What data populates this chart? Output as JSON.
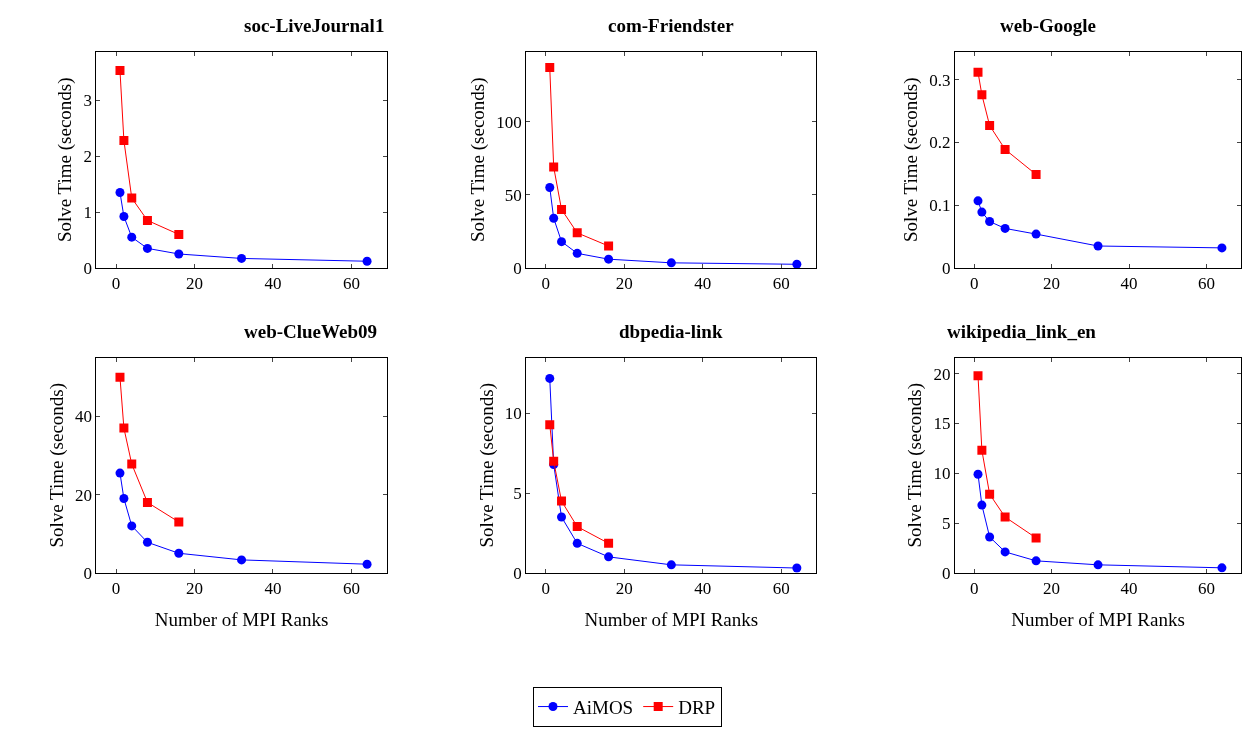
{
  "chart_data": [
    {
      "type": "line",
      "title": "soc-LiveJournal1",
      "ylabel": "Solve Time (seconds)",
      "xlim": [
        -5,
        69
      ],
      "xticks": [
        0,
        20,
        40,
        60
      ],
      "ylim": [
        0,
        3.87
      ],
      "yticks": [
        0,
        1,
        2,
        3
      ],
      "legend": "bottom",
      "series": [
        {
          "name": "AiMOS",
          "color": "#0000ff",
          "marker": "circle",
          "x": [
            1,
            2,
            4,
            8,
            16,
            32,
            64
          ],
          "values": [
            1.35,
            0.92,
            0.55,
            0.35,
            0.25,
            0.17,
            0.12
          ]
        },
        {
          "name": "DRP",
          "color": "#ff0000",
          "marker": "square",
          "x": [
            1,
            2,
            4,
            8,
            16
          ],
          "values": [
            3.53,
            2.28,
            1.25,
            0.85,
            0.6
          ]
        }
      ]
    },
    {
      "type": "line",
      "title": "com-Friendster",
      "ylabel": "Solve Time (seconds)",
      "xlim": [
        -5,
        69
      ],
      "xticks": [
        0,
        20,
        40,
        60
      ],
      "ylim": [
        0,
        148
      ],
      "yticks": [
        0,
        50,
        100
      ],
      "legend": "bottom",
      "series": [
        {
          "name": "AiMOS",
          "color": "#0000ff",
          "marker": "circle",
          "x": [
            1,
            2,
            4,
            8,
            16,
            32,
            64
          ],
          "values": [
            55,
            34,
            18,
            10,
            6,
            3.5,
            2.5
          ]
        },
        {
          "name": "DRP",
          "color": "#ff0000",
          "marker": "square",
          "x": [
            1,
            2,
            4,
            8,
            16
          ],
          "values": [
            137,
            69,
            40,
            24,
            15
          ]
        }
      ]
    },
    {
      "type": "line",
      "title": "web-Google",
      "ylabel": "Solve Time (seconds)",
      "xlim": [
        -5,
        69
      ],
      "xticks": [
        0,
        20,
        40,
        60
      ],
      "ylim": [
        0,
        0.345
      ],
      "yticks": [
        0,
        0.1,
        0.2,
        0.3
      ],
      "legend": "bottom",
      "series": [
        {
          "name": "AiMOS",
          "color": "#0000ff",
          "marker": "circle",
          "x": [
            1,
            2,
            4,
            8,
            16,
            32,
            64
          ],
          "values": [
            0.107,
            0.089,
            0.074,
            0.063,
            0.054,
            0.035,
            0.032
          ]
        },
        {
          "name": "DRP",
          "color": "#ff0000",
          "marker": "square",
          "x": [
            1,
            2,
            4,
            8,
            16
          ],
          "values": [
            0.312,
            0.276,
            0.227,
            0.189,
            0.149
          ]
        }
      ]
    },
    {
      "type": "line",
      "title": "web-ClueWeb09",
      "xlabel": "Number of MPI Ranks",
      "ylabel": "Solve Time (seconds)",
      "xlim": [
        -5,
        69
      ],
      "xticks": [
        0,
        20,
        40,
        60
      ],
      "ylim": [
        0,
        55
      ],
      "yticks": [
        0,
        20,
        40
      ],
      "legend": "bottom",
      "series": [
        {
          "name": "AiMOS",
          "color": "#0000ff",
          "marker": "circle",
          "x": [
            1,
            2,
            4,
            8,
            16,
            32,
            64
          ],
          "values": [
            25.5,
            19,
            12,
            7.8,
            5,
            3.3,
            2.2
          ]
        },
        {
          "name": "DRP",
          "color": "#ff0000",
          "marker": "square",
          "x": [
            1,
            2,
            4,
            8,
            16
          ],
          "values": [
            50,
            37,
            27.8,
            18,
            13
          ]
        }
      ]
    },
    {
      "type": "line",
      "title": "dbpedia-link",
      "xlabel": "Number of MPI Ranks",
      "ylabel": "Solve Time (seconds)",
      "xlim": [
        -5,
        69
      ],
      "xticks": [
        0,
        20,
        40,
        60
      ],
      "ylim": [
        0,
        13.5
      ],
      "yticks": [
        0,
        5,
        10
      ],
      "legend": "bottom",
      "series": [
        {
          "name": "AiMOS",
          "color": "#0000ff",
          "marker": "circle",
          "x": [
            1,
            2,
            4,
            8,
            16,
            32,
            64
          ],
          "values": [
            12.2,
            6.8,
            3.5,
            1.85,
            1.0,
            0.5,
            0.3
          ]
        },
        {
          "name": "DRP",
          "color": "#ff0000",
          "marker": "square",
          "x": [
            1,
            2,
            4,
            8,
            16
          ],
          "values": [
            9.3,
            7.0,
            4.5,
            2.9,
            1.85
          ]
        }
      ]
    },
    {
      "type": "line",
      "title": "wikipedia_link_en",
      "xlabel": "Number of MPI Ranks",
      "ylabel": "Solve Time (seconds)",
      "xlim": [
        -5,
        69
      ],
      "xticks": [
        0,
        20,
        40,
        60
      ],
      "ylim": [
        0,
        21.6
      ],
      "yticks": [
        0,
        5,
        10,
        15,
        20
      ],
      "legend": "bottom",
      "series": [
        {
          "name": "AiMOS",
          "color": "#0000ff",
          "marker": "circle",
          "x": [
            1,
            2,
            4,
            8,
            16,
            32,
            64
          ],
          "values": [
            9.9,
            6.8,
            3.6,
            2.1,
            1.2,
            0.8,
            0.5
          ]
        },
        {
          "name": "DRP",
          "color": "#ff0000",
          "marker": "square",
          "x": [
            1,
            2,
            4,
            8,
            16
          ],
          "values": [
            19.8,
            12.3,
            7.9,
            5.6,
            3.5
          ]
        }
      ]
    }
  ]
}
